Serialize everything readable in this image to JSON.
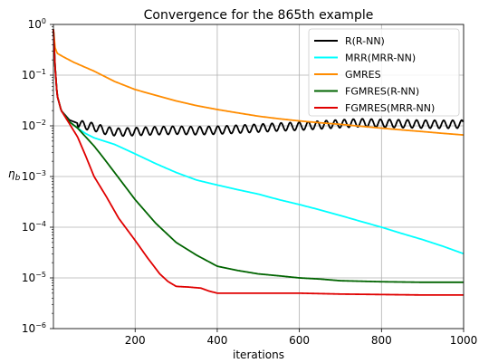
{
  "chart_data": {
    "type": "line",
    "title": "Convergence for the 865th example",
    "xlabel": "iterations",
    "ylabel": "η_b",
    "ylabel_main": "η",
    "ylabel_sub": "b",
    "xlim": [
      1,
      1000
    ],
    "ylim": [
      1e-06,
      1
    ],
    "yscale": "log",
    "grid": true,
    "legend_position": "top-right",
    "x_ticks": [
      200,
      400,
      600,
      800,
      1000
    ],
    "y_ticks": [
      {
        "value": 1e-06,
        "base": "10",
        "exp": "−6"
      },
      {
        "value": 1e-05,
        "base": "10",
        "exp": "−5"
      },
      {
        "value": 0.0001,
        "base": "10",
        "exp": "−4"
      },
      {
        "value": 0.001,
        "base": "10",
        "exp": "−3"
      },
      {
        "value": 0.01,
        "base": "10",
        "exp": "−2"
      },
      {
        "value": 0.1,
        "base": "10",
        "exp": "−1"
      },
      {
        "value": 1,
        "base": "10",
        "exp": "0"
      }
    ],
    "series": [
      {
        "name": "R(R-NN)",
        "color": "#000000",
        "oscillation": 0.08,
        "points": [
          [
            1,
            0.8
          ],
          [
            5,
            0.15
          ],
          [
            10,
            0.04
          ],
          [
            20,
            0.02
          ],
          [
            40,
            0.013
          ],
          [
            70,
            0.0105
          ],
          [
            100,
            0.0095
          ],
          [
            130,
            0.008
          ],
          [
            160,
            0.0075
          ],
          [
            200,
            0.0077
          ],
          [
            250,
            0.008
          ],
          [
            300,
            0.0082
          ],
          [
            350,
            0.008
          ],
          [
            400,
            0.0082
          ],
          [
            450,
            0.0086
          ],
          [
            500,
            0.009
          ],
          [
            550,
            0.0095
          ],
          [
            600,
            0.0098
          ],
          [
            650,
            0.0104
          ],
          [
            700,
            0.011
          ],
          [
            750,
            0.0115
          ],
          [
            800,
            0.0112
          ],
          [
            850,
            0.011
          ],
          [
            900,
            0.0108
          ],
          [
            950,
            0.0107
          ],
          [
            1000,
            0.0108
          ]
        ]
      },
      {
        "name": "MRR(MRR-NN)",
        "color": "#00ffff",
        "points": [
          [
            1,
            0.8
          ],
          [
            5,
            0.15
          ],
          [
            10,
            0.04
          ],
          [
            20,
            0.02
          ],
          [
            40,
            0.012
          ],
          [
            60,
            0.009
          ],
          [
            80,
            0.007
          ],
          [
            100,
            0.0058
          ],
          [
            150,
            0.0043
          ],
          [
            200,
            0.0028
          ],
          [
            250,
            0.0018
          ],
          [
            300,
            0.0012
          ],
          [
            350,
            0.00085
          ],
          [
            400,
            0.00068
          ],
          [
            450,
            0.00055
          ],
          [
            500,
            0.00045
          ],
          [
            550,
            0.00035
          ],
          [
            600,
            0.00028
          ],
          [
            650,
            0.00022
          ],
          [
            700,
            0.00017
          ],
          [
            750,
            0.00013
          ],
          [
            800,
            0.0001
          ],
          [
            850,
            7.5e-05
          ],
          [
            900,
            5.7e-05
          ],
          [
            950,
            4.2e-05
          ],
          [
            1000,
            3e-05
          ]
        ]
      },
      {
        "name": "GMRES",
        "color": "#ff8c00",
        "points": [
          [
            1,
            0.8
          ],
          [
            5,
            0.35
          ],
          [
            10,
            0.27
          ],
          [
            25,
            0.23
          ],
          [
            50,
            0.18
          ],
          [
            100,
            0.12
          ],
          [
            150,
            0.075
          ],
          [
            200,
            0.052
          ],
          [
            250,
            0.04
          ],
          [
            300,
            0.031
          ],
          [
            350,
            0.025
          ],
          [
            400,
            0.021
          ],
          [
            450,
            0.018
          ],
          [
            500,
            0.0155
          ],
          [
            550,
            0.0138
          ],
          [
            600,
            0.0125
          ],
          [
            650,
            0.0115
          ],
          [
            700,
            0.0107
          ],
          [
            750,
            0.0098
          ],
          [
            800,
            0.009
          ],
          [
            850,
            0.0083
          ],
          [
            900,
            0.0077
          ],
          [
            950,
            0.0071
          ],
          [
            1000,
            0.0066
          ]
        ]
      },
      {
        "name": "FGMRES(R-NN)",
        "color": "#006400",
        "points": [
          [
            1,
            0.8
          ],
          [
            5,
            0.15
          ],
          [
            10,
            0.04
          ],
          [
            20,
            0.02
          ],
          [
            40,
            0.012
          ],
          [
            60,
            0.009
          ],
          [
            80,
            0.006
          ],
          [
            100,
            0.004
          ],
          [
            120,
            0.0025
          ],
          [
            150,
            0.0012
          ],
          [
            200,
            0.00035
          ],
          [
            250,
            0.00012
          ],
          [
            300,
            5e-05
          ],
          [
            350,
            2.8e-05
          ],
          [
            400,
            1.7e-05
          ],
          [
            450,
            1.4e-05
          ],
          [
            500,
            1.2e-05
          ],
          [
            550,
            1.1e-05
          ],
          [
            600,
            1e-05
          ],
          [
            650,
            9.5e-06
          ],
          [
            700,
            8.8e-06
          ],
          [
            800,
            8.4e-06
          ],
          [
            900,
            8.2e-06
          ],
          [
            1000,
            8.2e-06
          ]
        ]
      },
      {
        "name": "FGMRES(MRR-NN)",
        "color": "#e00000",
        "points": [
          [
            1,
            0.8
          ],
          [
            5,
            0.15
          ],
          [
            10,
            0.04
          ],
          [
            20,
            0.02
          ],
          [
            40,
            0.011
          ],
          [
            60,
            0.006
          ],
          [
            80,
            0.0025
          ],
          [
            100,
            0.001
          ],
          [
            130,
            0.0004
          ],
          [
            160,
            0.00015
          ],
          [
            200,
            5.5e-05
          ],
          [
            230,
            2.5e-05
          ],
          [
            260,
            1.2e-05
          ],
          [
            280,
            8.5e-06
          ],
          [
            300,
            6.8e-06
          ],
          [
            330,
            6.6e-06
          ],
          [
            360,
            6.3e-06
          ],
          [
            380,
            5.5e-06
          ],
          [
            400,
            5e-06
          ],
          [
            500,
            5e-06
          ],
          [
            600,
            5e-06
          ],
          [
            700,
            4.8e-06
          ],
          [
            800,
            4.7e-06
          ],
          [
            900,
            4.6e-06
          ],
          [
            1000,
            4.6e-06
          ]
        ]
      }
    ]
  }
}
